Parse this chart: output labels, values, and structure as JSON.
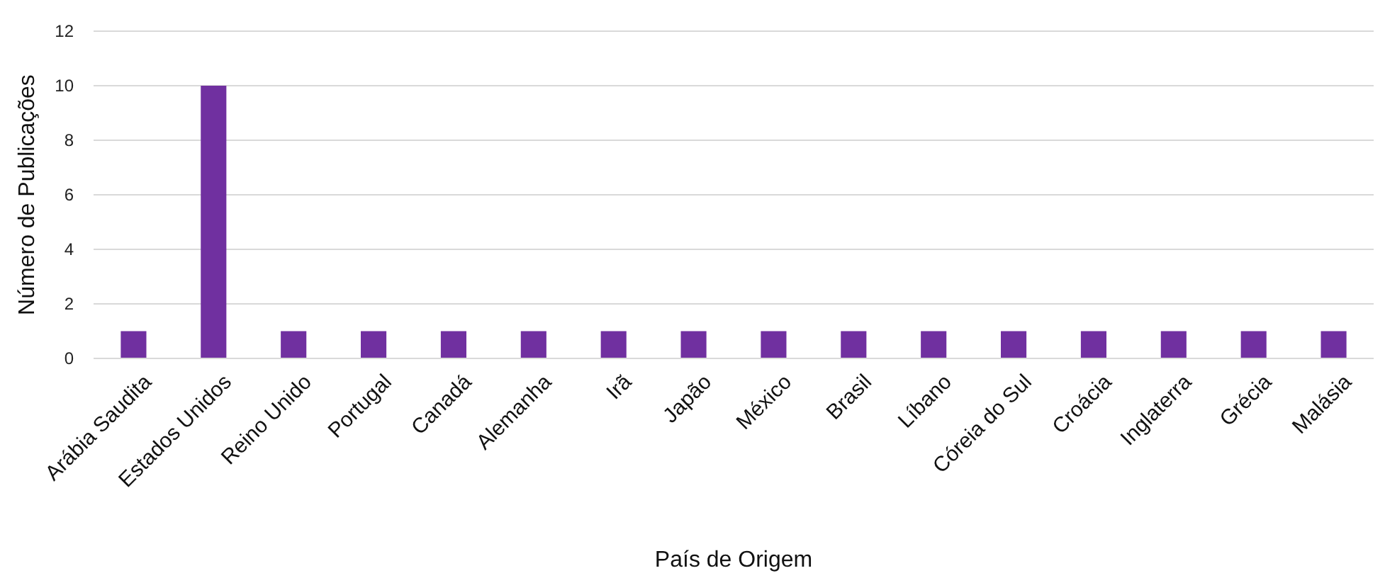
{
  "chart_data": {
    "type": "bar",
    "xlabel": "País de Origem",
    "ylabel": "Número de Publicações",
    "categories": [
      "Arábia Saudita",
      "Estados Unidos",
      "Reino Unido",
      "Portugal",
      "Canadá",
      "Alemanha",
      "Irã",
      "Japão",
      "México",
      "Brasil",
      "Líbano",
      "Córeia do Sul",
      "Croácia",
      "Inglaterra",
      "Grécia",
      "Malásia"
    ],
    "values": [
      1,
      10,
      1,
      1,
      1,
      1,
      1,
      1,
      1,
      1,
      1,
      1,
      1,
      1,
      1,
      1
    ],
    "color": "#7030a0",
    "ylim": [
      0,
      12
    ],
    "yticks": [
      0,
      2,
      4,
      6,
      8,
      10,
      12
    ],
    "grid": "y"
  }
}
